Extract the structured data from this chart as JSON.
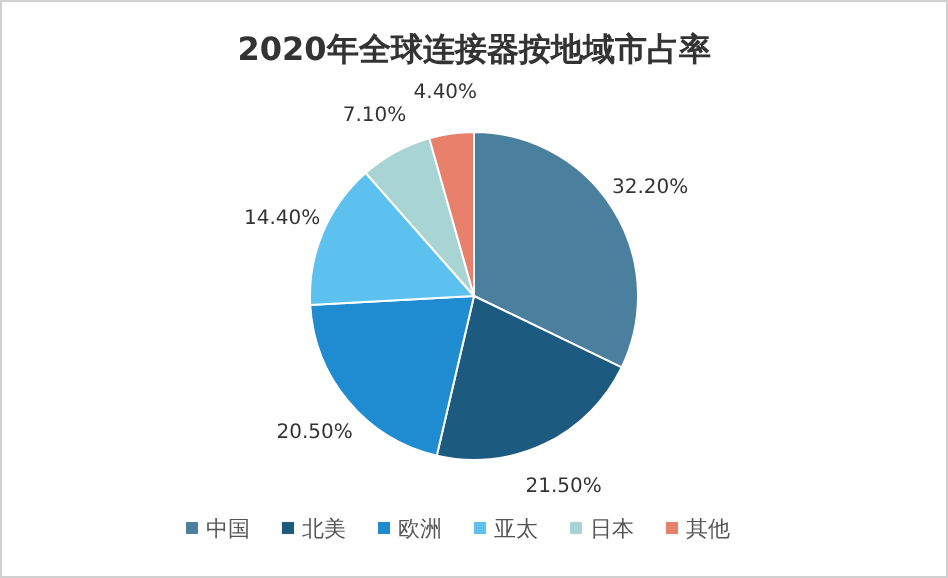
{
  "chart_data": {
    "type": "pie",
    "title": "2020年全球连接器按地域市占率",
    "categories": [
      "中国",
      "北美",
      "欧洲",
      "亚太",
      "日本",
      "其他"
    ],
    "values": [
      32.2,
      21.5,
      20.5,
      14.4,
      7.1,
      4.4
    ],
    "value_labels": [
      "32.20%",
      "21.50%",
      "20.50%",
      "14.40%",
      "7.10%",
      "4.40%"
    ],
    "colors": [
      "#4a7f9e",
      "#1d5a80",
      "#1f8bd0",
      "#5cc1ee",
      "#a8d5d4",
      "#e8806c"
    ],
    "legend": "bottom"
  }
}
